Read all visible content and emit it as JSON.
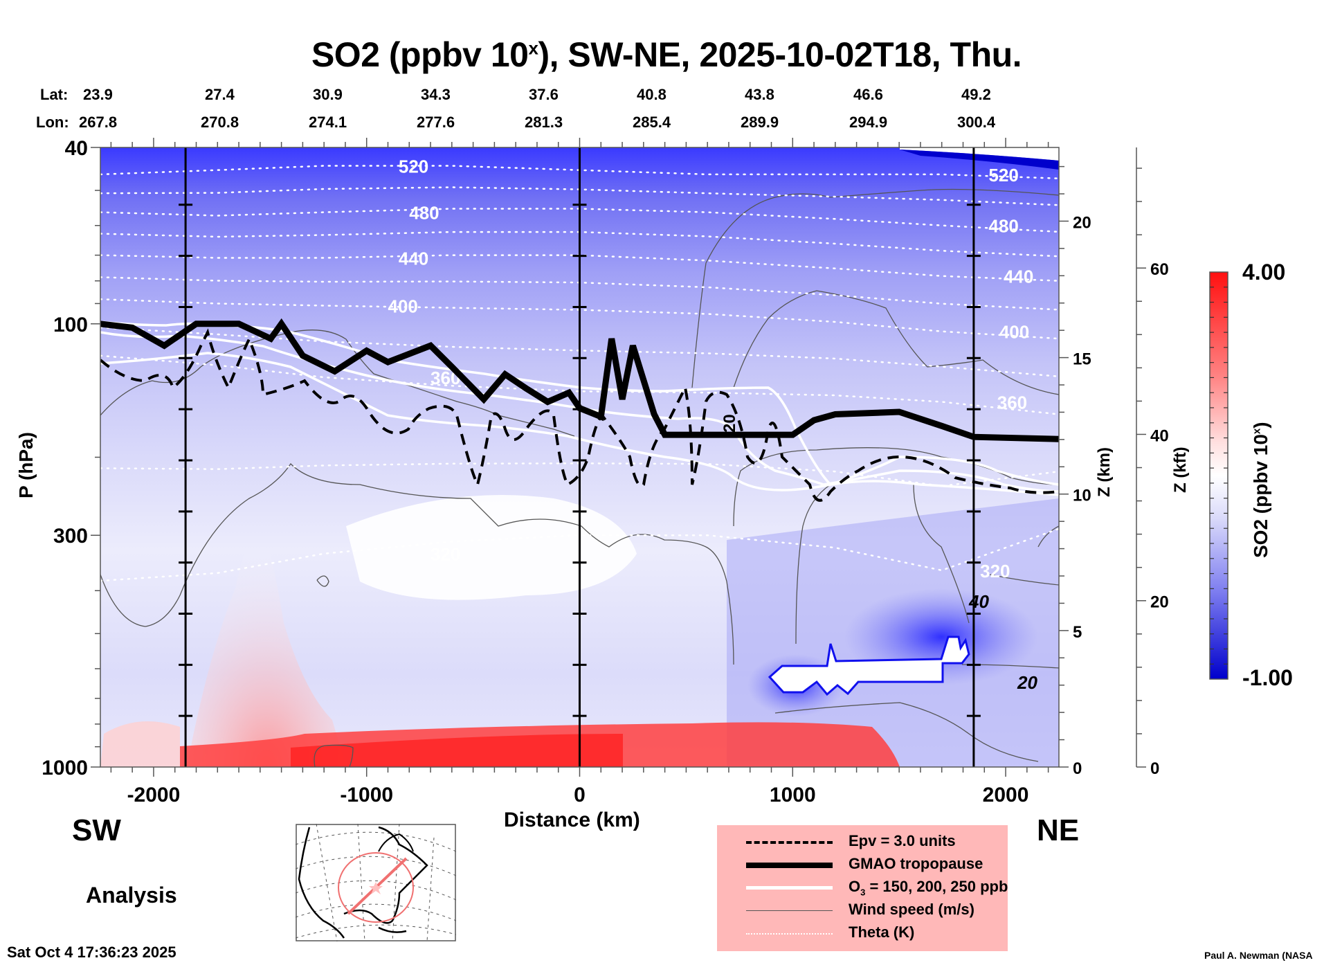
{
  "header": {
    "title_prefix": "SO2 (ppbv 10",
    "title_sup": "x",
    "title_suffix": "), SW-NE, 2025-10-02T18, Thu."
  },
  "latlon": {
    "lat_label": "Lat:",
    "lon_label": "Lon:",
    "lat": [
      "23.9",
      "27.4",
      "30.9",
      "34.3",
      "37.6",
      "40.8",
      "43.8",
      "46.6",
      "49.2"
    ],
    "lon": [
      "267.8",
      "270.8",
      "274.1",
      "277.6",
      "281.3",
      "285.4",
      "289.9",
      "294.9",
      "300.4"
    ]
  },
  "labels": {
    "sw": "SW",
    "ne": "NE",
    "analysis": "Analysis",
    "timestamp": "Sat Oct  4 17:36:23 2025",
    "credit": "Paul A. Newman (NASA"
  },
  "legend": {
    "items": [
      {
        "label": "Epv = 3.0 units",
        "style": "dashed-black"
      },
      {
        "label": "GMAO tropopause",
        "style": "thick-black"
      },
      {
        "label": "O3 = 150, 200, 250 ppb",
        "label_main": "O",
        "label_sub": "3",
        "label_rest": " = 150, 200, 250 ppb",
        "style": "white"
      },
      {
        "label": "Wind speed (m/s)",
        "style": "thin-gray"
      },
      {
        "label": "Theta (K)",
        "style": "dotted-white"
      }
    ]
  },
  "colors": {
    "high": "#ff0000",
    "mid": "#ffffff",
    "low": "#0000d0",
    "legend_bg": "#ffb8b8",
    "map_track": "#f07070"
  },
  "chart_data": {
    "type": "heatmap",
    "title": "SO2 (ppbv 10^x), SW-NE, 2025-10-02T18, Thu.",
    "xlabel": "Distance (km)",
    "ylabel": "P (hPa)",
    "y2label": "Z (km)",
    "y3label": "Z (kft)",
    "colorbar_label": "SO2 (ppbv 10^x)",
    "xlim": [
      -2250,
      2250
    ],
    "ylim": [
      1000,
      40
    ],
    "yscale": "log",
    "x_ticks": [
      -2000,
      -1000,
      0,
      1000,
      2000
    ],
    "x_tick_labels": [
      "-2000",
      "-1000",
      "0",
      "1000",
      "2000"
    ],
    "y_ticks": [
      40,
      100,
      300,
      1000
    ],
    "y_tick_labels": [
      "40",
      "100",
      "300",
      "1000"
    ],
    "zkm_ticks": [
      0,
      5,
      10,
      15,
      20
    ],
    "zkm_tick_labels": [
      "0",
      "5",
      "10",
      "15",
      "20"
    ],
    "zkft_ticks": [
      0,
      20,
      40,
      60
    ],
    "zkft_tick_labels": [
      "0",
      "20",
      "40",
      "60"
    ],
    "colorbar_range": [
      -1.0,
      4.0
    ],
    "colorbar_labels": [
      "4.00",
      "-1.00"
    ],
    "vertical_lines_km": [
      -1850,
      0,
      1850
    ],
    "theta_contours": [
      {
        "level": 520,
        "label": "520",
        "p": [
          46,
          45,
          44,
          44,
          45,
          46,
          46,
          46,
          47
        ]
      },
      {
        "level": 480,
        "label": "480",
        "p": [
          56,
          57,
          56,
          55,
          55,
          56,
          58,
          60,
          62
        ]
      },
      {
        "level": 440,
        "label": "440",
        "p": [
          70,
          71,
          71,
          70,
          70,
          72,
          75,
          78,
          80
        ]
      },
      {
        "level": 400,
        "label": "400",
        "p": [
          88,
          90,
          91,
          92,
          93,
          95,
          99,
          104,
          108
        ]
      },
      {
        "level": 360,
        "label": "360",
        "p": [
          118,
          124,
          132,
          138,
          142,
          143,
          145,
          150,
          160
        ]
      },
      {
        "level": 320,
        "label": "320",
        "p": [
          380,
          365,
          330,
          310,
          300,
          300,
          320,
          360,
          290
        ]
      }
    ],
    "theta_x": [
      -2250,
      -1700,
      -1200,
      -600,
      0,
      600,
      1200,
      1700,
      2250
    ],
    "tropopause": {
      "x": [
        -2250,
        -2100,
        -1950,
        -1800,
        -1600,
        -1450,
        -1400,
        -1300,
        -1150,
        -1000,
        -900,
        -700,
        -600,
        -450,
        -350,
        -250,
        -150,
        -50,
        0,
        100,
        150,
        200,
        250,
        350,
        400,
        600,
        1000,
        1100,
        1200,
        1500,
        1700,
        1850,
        2250
      ],
      "p": [
        100,
        102,
        112,
        100,
        100,
        108,
        100,
        118,
        128,
        115,
        122,
        112,
        125,
        148,
        130,
        140,
        150,
        143,
        155,
        162,
        108,
        148,
        112,
        160,
        178,
        178,
        178,
        165,
        160,
        158,
        170,
        180,
        182
      ]
    },
    "wind_speed_labels": [
      "20",
      "20",
      "40"
    ],
    "theta_labels_right": [
      "520",
      "480",
      "440",
      "400",
      "360",
      "320"
    ]
  },
  "inset_map": {
    "label": "cross-section track map"
  }
}
